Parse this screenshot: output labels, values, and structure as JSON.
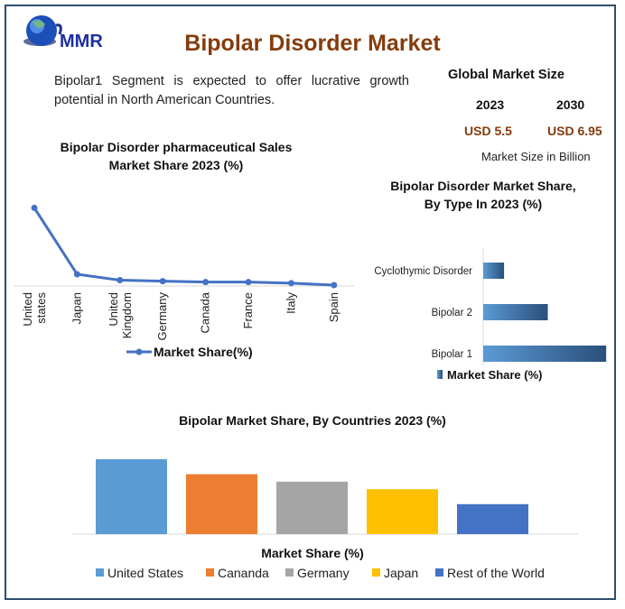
{
  "header": {
    "logo_text": "MMR",
    "title": "Bipolar Disorder Market"
  },
  "summary": "Bipolar1 Segment is expected to offer lucrative growth potential in North American Countries.",
  "market_size": {
    "title": "Global Market Size",
    "years": [
      "2023",
      "2030"
    ],
    "values": [
      "USD 5.5",
      "USD 6.95"
    ],
    "unit_note": "Market Size in Billion",
    "value_color": "#843c0c"
  },
  "chart_data": [
    {
      "type": "line",
      "title": "Bipolar Disorder pharmaceutical Sales Market Share 2023 (%)",
      "categories": [
        "United states",
        "Japan",
        "United Kingdom",
        "Germany",
        "Canada",
        "France",
        "Italy",
        "Spain"
      ],
      "series": [
        {
          "name": "Market Share(%)",
          "values": [
            60,
            9,
            4.5,
            3.7,
            3,
            3,
            2.2,
            0.7
          ],
          "color": "#4472c4"
        }
      ],
      "ylim": [
        0,
        70
      ],
      "grid": false,
      "legend": "bottom"
    },
    {
      "type": "bar",
      "orientation": "horizontal",
      "title": "Bipolar Disorder Market Share, By Type In 2023 (%)",
      "categories": [
        "Cyclothymic Disorder",
        "Bipolar 2",
        "Bipolar 1"
      ],
      "series": [
        {
          "name": "Market Share (%)",
          "values": [
            10,
            31,
            59
          ],
          "color": "#2f5f8f"
        }
      ],
      "xlim": [
        0,
        65
      ],
      "grid": false,
      "legend": "bottom"
    },
    {
      "type": "bar",
      "title": "Bipolar Market Share, By Countries 2023 (%)",
      "xlabel": "Market Share (%)",
      "categories": [
        "United States",
        "Cananda",
        "Germany",
        "Japan",
        "Rest of the World"
      ],
      "values": [
        30,
        24,
        21,
        18,
        12
      ],
      "colors": [
        "#5b9bd5",
        "#ed7d31",
        "#a5a5a5",
        "#ffc000",
        "#4472c4"
      ],
      "ylim": [
        0,
        30
      ],
      "grid": false,
      "legend": "bottom"
    }
  ]
}
